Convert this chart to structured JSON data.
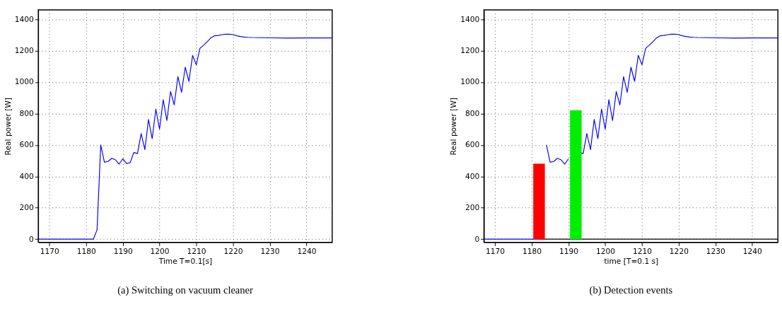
{
  "chart_data": [
    {
      "type": "line",
      "title": "(a)  Switching on vacuum cleaner",
      "xlabel": "Time T=0.1[s]",
      "ylabel": "Real power [W]",
      "xlim": [
        1167,
        1247
      ],
      "ylim": [
        -20,
        1460
      ],
      "xticks": [
        1170,
        1180,
        1190,
        1200,
        1210,
        1220,
        1230,
        1240
      ],
      "yticks": [
        0,
        200,
        400,
        600,
        800,
        1000,
        1200,
        1400
      ],
      "grid": true,
      "line_style": "solid",
      "series": [
        {
          "color": "#0000ff",
          "x": [
            1167,
            1175,
            1182,
            1183,
            1184,
            1185,
            1186,
            1187,
            1188,
            1189,
            1190,
            1191,
            1192,
            1193,
            1194,
            1195,
            1196,
            1197,
            1198,
            1199,
            1200,
            1201,
            1202,
            1203,
            1204,
            1205,
            1206,
            1207,
            1208,
            1209,
            1210,
            1211,
            1212,
            1213,
            1214,
            1215,
            1216,
            1217,
            1218,
            1219,
            1220,
            1221,
            1222,
            1223,
            1224,
            1225,
            1230,
            1235,
            1240,
            1247
          ],
          "values": [
            0,
            0,
            0,
            60,
            600,
            490,
            495,
            515,
            505,
            478,
            512,
            482,
            487,
            552,
            545,
            672,
            570,
            762,
            640,
            828,
            700,
            888,
            755,
            940,
            855,
            1035,
            935,
            1095,
            1005,
            1170,
            1110,
            1215,
            1235,
            1258,
            1282,
            1295,
            1297,
            1302,
            1305,
            1305,
            1302,
            1295,
            1290,
            1287,
            1285,
            1284,
            1282,
            1280,
            1281,
            1281
          ]
        }
      ]
    },
    {
      "type": "line",
      "title": "(b)  Detection events",
      "xlabel": "time [T=0.1 s]",
      "ylabel": "Real power [W]",
      "xlim": [
        1167,
        1247
      ],
      "ylim": [
        -20,
        1460
      ],
      "xticks": [
        1170,
        1180,
        1190,
        1200,
        1210,
        1220,
        1230,
        1240
      ],
      "yticks": [
        0,
        200,
        400,
        600,
        800,
        1000,
        1200,
        1400
      ],
      "grid": true,
      "line_style": "solid",
      "series": [
        {
          "color": "#0000ff",
          "x": [
            1167,
            1175,
            1182,
            1183,
            1184,
            1185,
            1186,
            1187,
            1188,
            1189,
            1190,
            1191,
            1192,
            1193,
            1194,
            1195,
            1196,
            1197,
            1198,
            1199,
            1200,
            1201,
            1202,
            1203,
            1204,
            1205,
            1206,
            1207,
            1208,
            1209,
            1210,
            1211,
            1212,
            1213,
            1214,
            1215,
            1216,
            1217,
            1218,
            1219,
            1220,
            1221,
            1222,
            1223,
            1224,
            1225,
            1230,
            1235,
            1240,
            1247
          ],
          "values": [
            0,
            0,
            0,
            null,
            600,
            490,
            495,
            515,
            505,
            478,
            512,
            null,
            null,
            552,
            545,
            672,
            570,
            762,
            640,
            828,
            700,
            888,
            755,
            940,
            855,
            1035,
            935,
            1095,
            1005,
            1170,
            1110,
            1215,
            1235,
            1258,
            1282,
            1295,
            1297,
            1302,
            1305,
            1305,
            1302,
            1295,
            1290,
            1287,
            1285,
            1284,
            1282,
            1280,
            1281,
            1281
          ]
        },
        {
          "color": "#000000",
          "x": [
            1182,
            1247
          ],
          "values": [
            0,
            0
          ]
        },
        {
          "type": "bar",
          "x": [
            1182,
            1192
          ],
          "values": [
            480,
            820
          ],
          "colors": [
            "#ff0000",
            "#00ee00"
          ]
        }
      ]
    }
  ]
}
